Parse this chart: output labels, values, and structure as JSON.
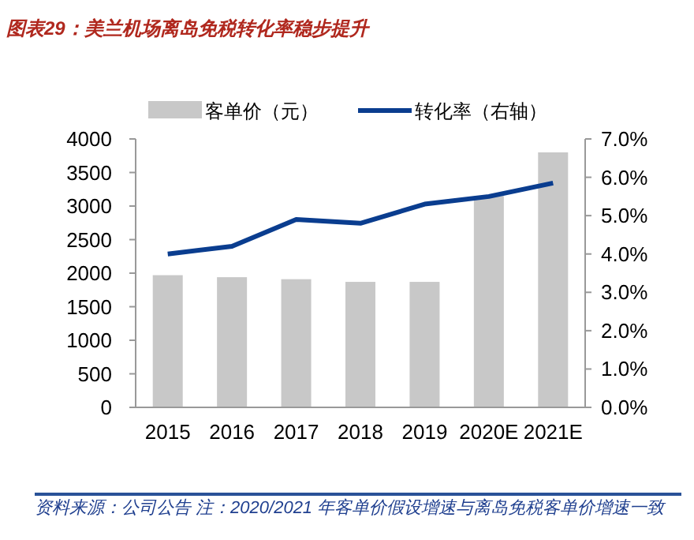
{
  "chart_data": {
    "type": "bar",
    "title": "图表29：美兰机场离岛免税转化率稳步提升",
    "categories": [
      "2015",
      "2016",
      "2017",
      "2018",
      "2019",
      "2020E",
      "2021E"
    ],
    "series": [
      {
        "name": "客单价（元）",
        "color": "#c8c8c8",
        "values": [
          1970,
          1940,
          1910,
          1870,
          1870,
          3150,
          3800
        ]
      },
      {
        "name": "转化率（右轴）",
        "type": "line",
        "axis": "y2",
        "color": "#0a3d8f",
        "values": [
          4.0,
          4.2,
          4.9,
          4.8,
          5.3,
          5.5,
          5.85
        ]
      }
    ],
    "ylim": [
      0,
      4000
    ],
    "yticks": [
      0,
      500,
      1000,
      1500,
      2000,
      2500,
      3000,
      3500,
      4000
    ],
    "y2lim": [
      0,
      7
    ],
    "y2ticks": [
      {
        "value": 0,
        "label": "0.0%"
      },
      {
        "value": 1,
        "label": "1.0%"
      },
      {
        "value": 2,
        "label": "2.0%"
      },
      {
        "value": 3,
        "label": "3.0%"
      },
      {
        "value": 4,
        "label": "4.0%"
      },
      {
        "value": 5,
        "label": "5.0%"
      },
      {
        "value": 6,
        "label": "6.0%"
      },
      {
        "value": 7,
        "label": "7.0%"
      }
    ],
    "legend": "top",
    "grid": false,
    "annotations": [
      "资料来源：公司公告 注：2020/2021 年客单价假设增速与离岛免税客单价增速一致"
    ]
  }
}
